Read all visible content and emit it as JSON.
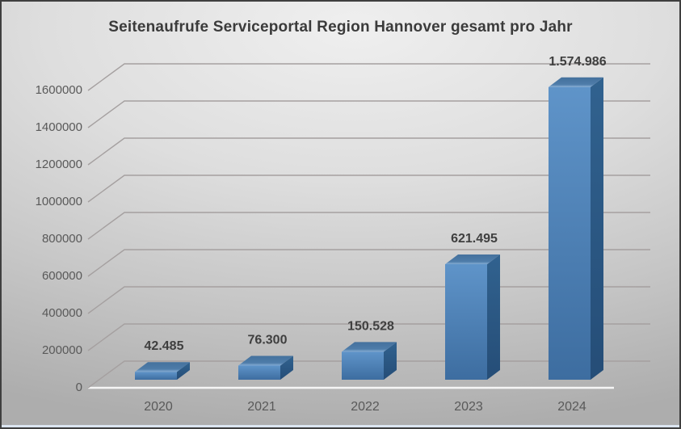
{
  "chart_data": {
    "type": "bar",
    "style": "3d-column",
    "title": "Seitenaufrufe Serviceportal Region Hannover gesamt pro Jahr",
    "xlabel": "",
    "ylabel": "",
    "categories": [
      "2020",
      "2021",
      "2022",
      "2023",
      "2024"
    ],
    "values": [
      42485,
      76300,
      150528,
      621495,
      1574986
    ],
    "value_labels": [
      "42.485",
      "76.300",
      "150.528",
      "621.495",
      "1.574.986"
    ],
    "y_ticks": [
      0,
      200000,
      400000,
      600000,
      800000,
      1000000,
      1200000,
      1400000,
      1600000
    ],
    "y_tick_labels": [
      "0",
      "200000",
      "400000",
      "600000",
      "800000",
      "1000000",
      "1200000",
      "1400000",
      "1600000"
    ],
    "ylim": [
      0,
      1600000
    ],
    "grid": true,
    "legend": false,
    "colors": {
      "bar_front_top": "#5f94c9",
      "bar_front_bottom": "#3d6da0",
      "bar_side_top": "#31628f",
      "bar_side_bottom": "#254d77",
      "bar_top_back": "#44719d",
      "bar_top_mid": "#4e7ca9",
      "bar_top_front": "#85add4",
      "gridline": "#a5a0a0",
      "baseline": "#f5f5f5",
      "title_text": "#3b3b3b",
      "axis_text": "#595959",
      "value_text": "#3f3f3f"
    }
  }
}
